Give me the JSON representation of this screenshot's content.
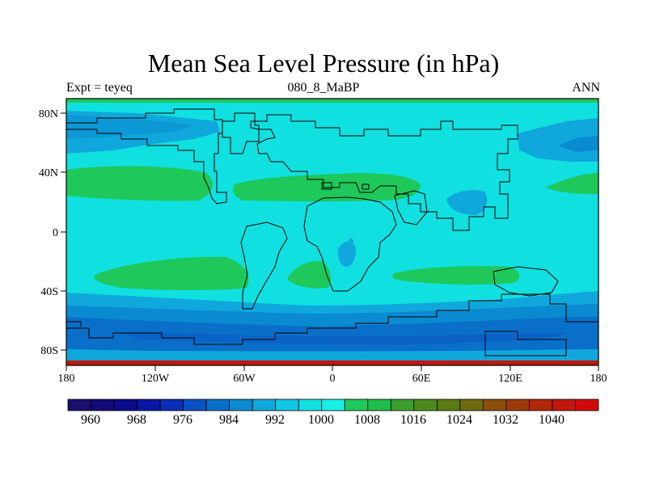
{
  "title": "Mean Sea Level Pressure (in hPa)",
  "subtitle_left": "Expt = teyeq",
  "subtitle_center": "080_8_MaBP",
  "subtitle_right": "ANN",
  "chart_data": {
    "type": "contour-map",
    "variable": "Mean Sea Level Pressure",
    "units": "hPa",
    "projection": "cylindrical equidistant",
    "lon_range": [
      -180,
      180
    ],
    "lat_range": [
      -90,
      90
    ],
    "x_ticks": [
      "180",
      "120W",
      "60W",
      "0",
      "60E",
      "120E",
      "180"
    ],
    "y_ticks": [
      "80N",
      "40N",
      "0",
      "40S",
      "80S"
    ],
    "colorbar": {
      "levels": [
        956,
        960,
        964,
        968,
        972,
        976,
        980,
        984,
        988,
        992,
        996,
        1000,
        1004,
        1008,
        1012,
        1016,
        1020,
        1024,
        1028,
        1032,
        1036,
        1040,
        1044
      ],
      "colors": [
        "#1a0f6e",
        "#120a78",
        "#0b0b8c",
        "#0818a0",
        "#0a2db4",
        "#0a52c4",
        "#0a6fc8",
        "#0a8ad0",
        "#10a8dc",
        "#10c8e4",
        "#10e0e0",
        "#18f0e6",
        "#1ec85a",
        "#1ebe4a",
        "#3c9e2e",
        "#4c8a1e",
        "#5a7a14",
        "#6e6a10",
        "#88500c",
        "#9e3a0a",
        "#b0280a",
        "#c0180c",
        "#d00a0a"
      ],
      "labels": [
        "960",
        "968",
        "976",
        "984",
        "992",
        "1000",
        "1008",
        "1016",
        "1024",
        "1032",
        "1040"
      ]
    },
    "features": {
      "background": "~996-1000 hPa (cyan)",
      "subtropical_highs": "~1004-1008 hPa near 30N and 30S",
      "southern_ocean_low": "~984-992 hPa between 50S and 75S",
      "arctic_lows": "~992-996 hPa near 60-75N"
    }
  }
}
